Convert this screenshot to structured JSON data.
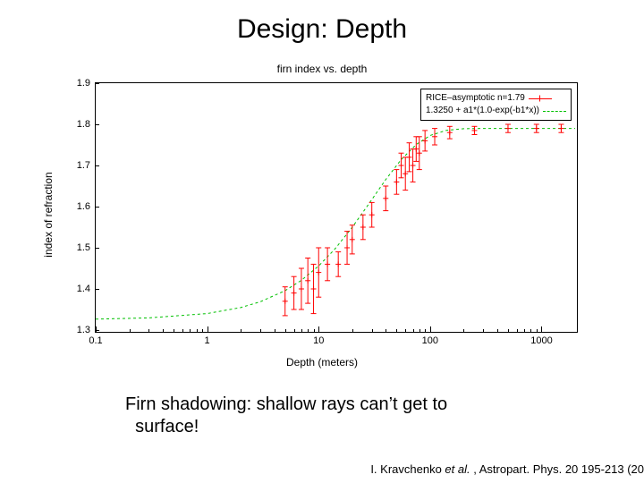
{
  "title": "Design: Depth",
  "chart": {
    "type": "scatter-with-fit",
    "title": "firn index vs. depth",
    "xlabel": "Depth (meters)",
    "ylabel": "index of refraction",
    "xscale": "log",
    "xlim": [
      0.1,
      2000
    ],
    "ylim": [
      1.3,
      1.9
    ],
    "yticks": [
      1.3,
      1.4,
      1.5,
      1.6,
      1.7,
      1.8,
      1.9
    ],
    "xticks": [
      0.1,
      1,
      10,
      100,
      1000
    ],
    "xtick_labels": [
      "0.1",
      "1",
      "10",
      "100",
      "1000"
    ],
    "background_color": "#ffffff",
    "border_color": "#000000",
    "tick_fontsize": 11,
    "label_fontsize": 12,
    "legend": {
      "position": "top-right",
      "entries": [
        {
          "label": "RICE–asymptotic n=1.79",
          "marker": "cross",
          "color": "#ff0000"
        },
        {
          "label": "1.3250 + a1*(1.0-exp(-b1*x))",
          "style": "dashed",
          "color": "#00c000"
        }
      ]
    },
    "series": [
      {
        "name": "RICE data",
        "type": "errorbar",
        "color": "#ff0000",
        "marker": "plus",
        "marker_size": 6,
        "linewidth": 1,
        "points": [
          {
            "x": 5,
            "y": 1.37,
            "ey": 0.035
          },
          {
            "x": 6,
            "y": 1.39,
            "ey": 0.04
          },
          {
            "x": 7,
            "y": 1.4,
            "ey": 0.05
          },
          {
            "x": 8,
            "y": 1.42,
            "ey": 0.055
          },
          {
            "x": 9,
            "y": 1.4,
            "ey": 0.06
          },
          {
            "x": 10,
            "y": 1.44,
            "ey": 0.06
          },
          {
            "x": 12,
            "y": 1.46,
            "ey": 0.04
          },
          {
            "x": 15,
            "y": 1.46,
            "ey": 0.03
          },
          {
            "x": 18,
            "y": 1.5,
            "ey": 0.04
          },
          {
            "x": 20,
            "y": 1.52,
            "ey": 0.035
          },
          {
            "x": 25,
            "y": 1.55,
            "ey": 0.03
          },
          {
            "x": 30,
            "y": 1.58,
            "ey": 0.03
          },
          {
            "x": 40,
            "y": 1.62,
            "ey": 0.03
          },
          {
            "x": 50,
            "y": 1.66,
            "ey": 0.03
          },
          {
            "x": 55,
            "y": 1.7,
            "ey": 0.03
          },
          {
            "x": 60,
            "y": 1.68,
            "ey": 0.04
          },
          {
            "x": 65,
            "y": 1.72,
            "ey": 0.035
          },
          {
            "x": 70,
            "y": 1.7,
            "ey": 0.04
          },
          {
            "x": 75,
            "y": 1.74,
            "ey": 0.03
          },
          {
            "x": 80,
            "y": 1.73,
            "ey": 0.04
          },
          {
            "x": 90,
            "y": 1.76,
            "ey": 0.025
          },
          {
            "x": 110,
            "y": 1.77,
            "ey": 0.02
          },
          {
            "x": 150,
            "y": 1.78,
            "ey": 0.015
          },
          {
            "x": 250,
            "y": 1.785,
            "ey": 0.01
          },
          {
            "x": 500,
            "y": 1.79,
            "ey": 0.01
          },
          {
            "x": 900,
            "y": 1.79,
            "ey": 0.01
          },
          {
            "x": 1500,
            "y": 1.79,
            "ey": 0.01
          }
        ]
      },
      {
        "name": "fit",
        "type": "line",
        "color": "#00c000",
        "dash": "3,3",
        "linewidth": 1,
        "formula": "1.3250 + 0.465*(1 - exp(-0.033*x))",
        "a0": 1.325,
        "a1": 0.465,
        "b1": 0.033,
        "x_samples": [
          0.1,
          0.3,
          1,
          2,
          3,
          5,
          7,
          10,
          14,
          20,
          28,
          40,
          55,
          75,
          100,
          140,
          200,
          300,
          500,
          1000,
          2000
        ]
      }
    ]
  },
  "caption_line1": "Firn shadowing: shallow rays can’t get to",
  "caption_line2": "surface!",
  "citation_prefix": "I. Kravchenko ",
  "citation_ital": "et al.",
  "citation_suffix": " , Astropart. Phys. 20 195-213 (20"
}
